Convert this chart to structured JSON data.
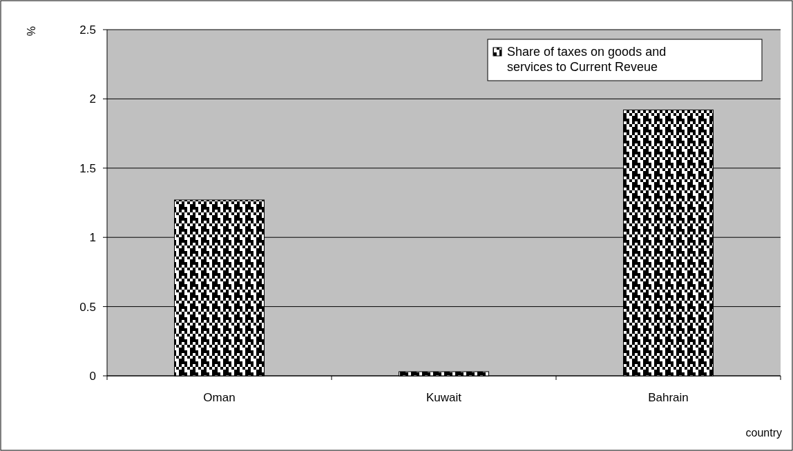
{
  "chart_data": {
    "type": "bar",
    "ylabel": "%",
    "xlabel": "country",
    "categories": [
      "Oman",
      "Kuwait",
      "Bahrain"
    ],
    "series": [
      {
        "name": "Share of taxes on goods and services to Current Reveue",
        "color": "#000000",
        "values": [
          1.27,
          0.03,
          1.92
        ]
      }
    ],
    "ylim": [
      0,
      2.5
    ],
    "yticks": [
      0,
      0.5,
      1,
      1.5,
      2,
      2.5
    ],
    "grid": "y",
    "legend": "top right"
  }
}
